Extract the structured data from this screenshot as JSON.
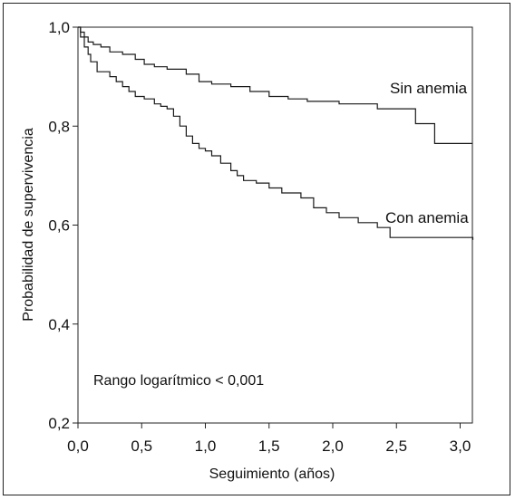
{
  "chart_data": {
    "type": "line",
    "step": true,
    "xlabel": "Seguimiento (años)",
    "ylabel": "Probabilidad de supervivencia",
    "xlim": [
      0,
      3.2
    ],
    "ylim": [
      0.2,
      1.0
    ],
    "x_ticks": [
      0,
      0.5,
      1.0,
      1.5,
      2.0,
      2.5,
      3.0
    ],
    "x_tick_labels": [
      "0,0",
      "0,5",
      "1,0",
      "1,5",
      "2,0",
      "2,5",
      "3,0"
    ],
    "y_ticks": [
      0.2,
      0.4,
      0.6,
      0.8,
      1.0
    ],
    "y_tick_labels": [
      "0,2",
      "0,4",
      "0,6",
      "0,8",
      "1,0"
    ],
    "annotation": "Rango logarítmico < 0,001",
    "series": [
      {
        "name": "Sin anemia",
        "x": [
          0,
          0.02,
          0.05,
          0.08,
          0.12,
          0.18,
          0.25,
          0.35,
          0.45,
          0.52,
          0.6,
          0.7,
          0.85,
          0.95,
          1.05,
          1.2,
          1.35,
          1.5,
          1.65,
          1.8,
          2.05,
          2.35,
          2.65,
          2.8,
          3.1
        ],
        "y": [
          1.0,
          0.99,
          0.98,
          0.97,
          0.965,
          0.96,
          0.95,
          0.945,
          0.935,
          0.925,
          0.92,
          0.915,
          0.905,
          0.89,
          0.885,
          0.88,
          0.87,
          0.86,
          0.855,
          0.85,
          0.845,
          0.835,
          0.805,
          0.765,
          0.765
        ]
      },
      {
        "name": "Con anemia",
        "x": [
          0,
          0.02,
          0.05,
          0.08,
          0.1,
          0.15,
          0.25,
          0.3,
          0.35,
          0.4,
          0.45,
          0.52,
          0.6,
          0.65,
          0.7,
          0.75,
          0.8,
          0.85,
          0.9,
          0.95,
          1.0,
          1.05,
          1.12,
          1.2,
          1.25,
          1.3,
          1.4,
          1.5,
          1.6,
          1.75,
          1.85,
          1.95,
          2.05,
          2.2,
          2.35,
          2.45,
          3.1
        ],
        "y": [
          1.0,
          0.98,
          0.96,
          0.945,
          0.93,
          0.91,
          0.9,
          0.89,
          0.88,
          0.87,
          0.86,
          0.855,
          0.845,
          0.84,
          0.835,
          0.82,
          0.8,
          0.78,
          0.765,
          0.755,
          0.75,
          0.74,
          0.725,
          0.71,
          0.7,
          0.69,
          0.685,
          0.675,
          0.665,
          0.655,
          0.635,
          0.625,
          0.615,
          0.605,
          0.595,
          0.575,
          0.57
        ]
      }
    ]
  }
}
